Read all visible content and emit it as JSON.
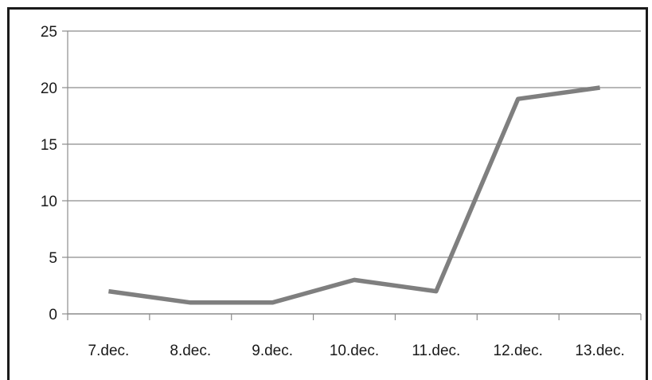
{
  "chart_data": {
    "type": "line",
    "title": "",
    "xlabel": "",
    "ylabel": "",
    "categories": [
      "7.dec.",
      "8.dec.",
      "9.dec.",
      "10.dec.",
      "11.dec.",
      "12.dec.",
      "13.dec."
    ],
    "series": [
      {
        "values": [
          2,
          1,
          1,
          3,
          2,
          19,
          20
        ]
      }
    ],
    "ylim": [
      0,
      25
    ],
    "yticks": [
      "0",
      "5",
      "10",
      "15",
      "20",
      "25"
    ],
    "grid": true,
    "legend": "none",
    "colors": {
      "line": "#7f7f7f",
      "grid": "#8c8c8c",
      "axis": "#8c8c8c",
      "text": "#1a1a1a"
    }
  }
}
